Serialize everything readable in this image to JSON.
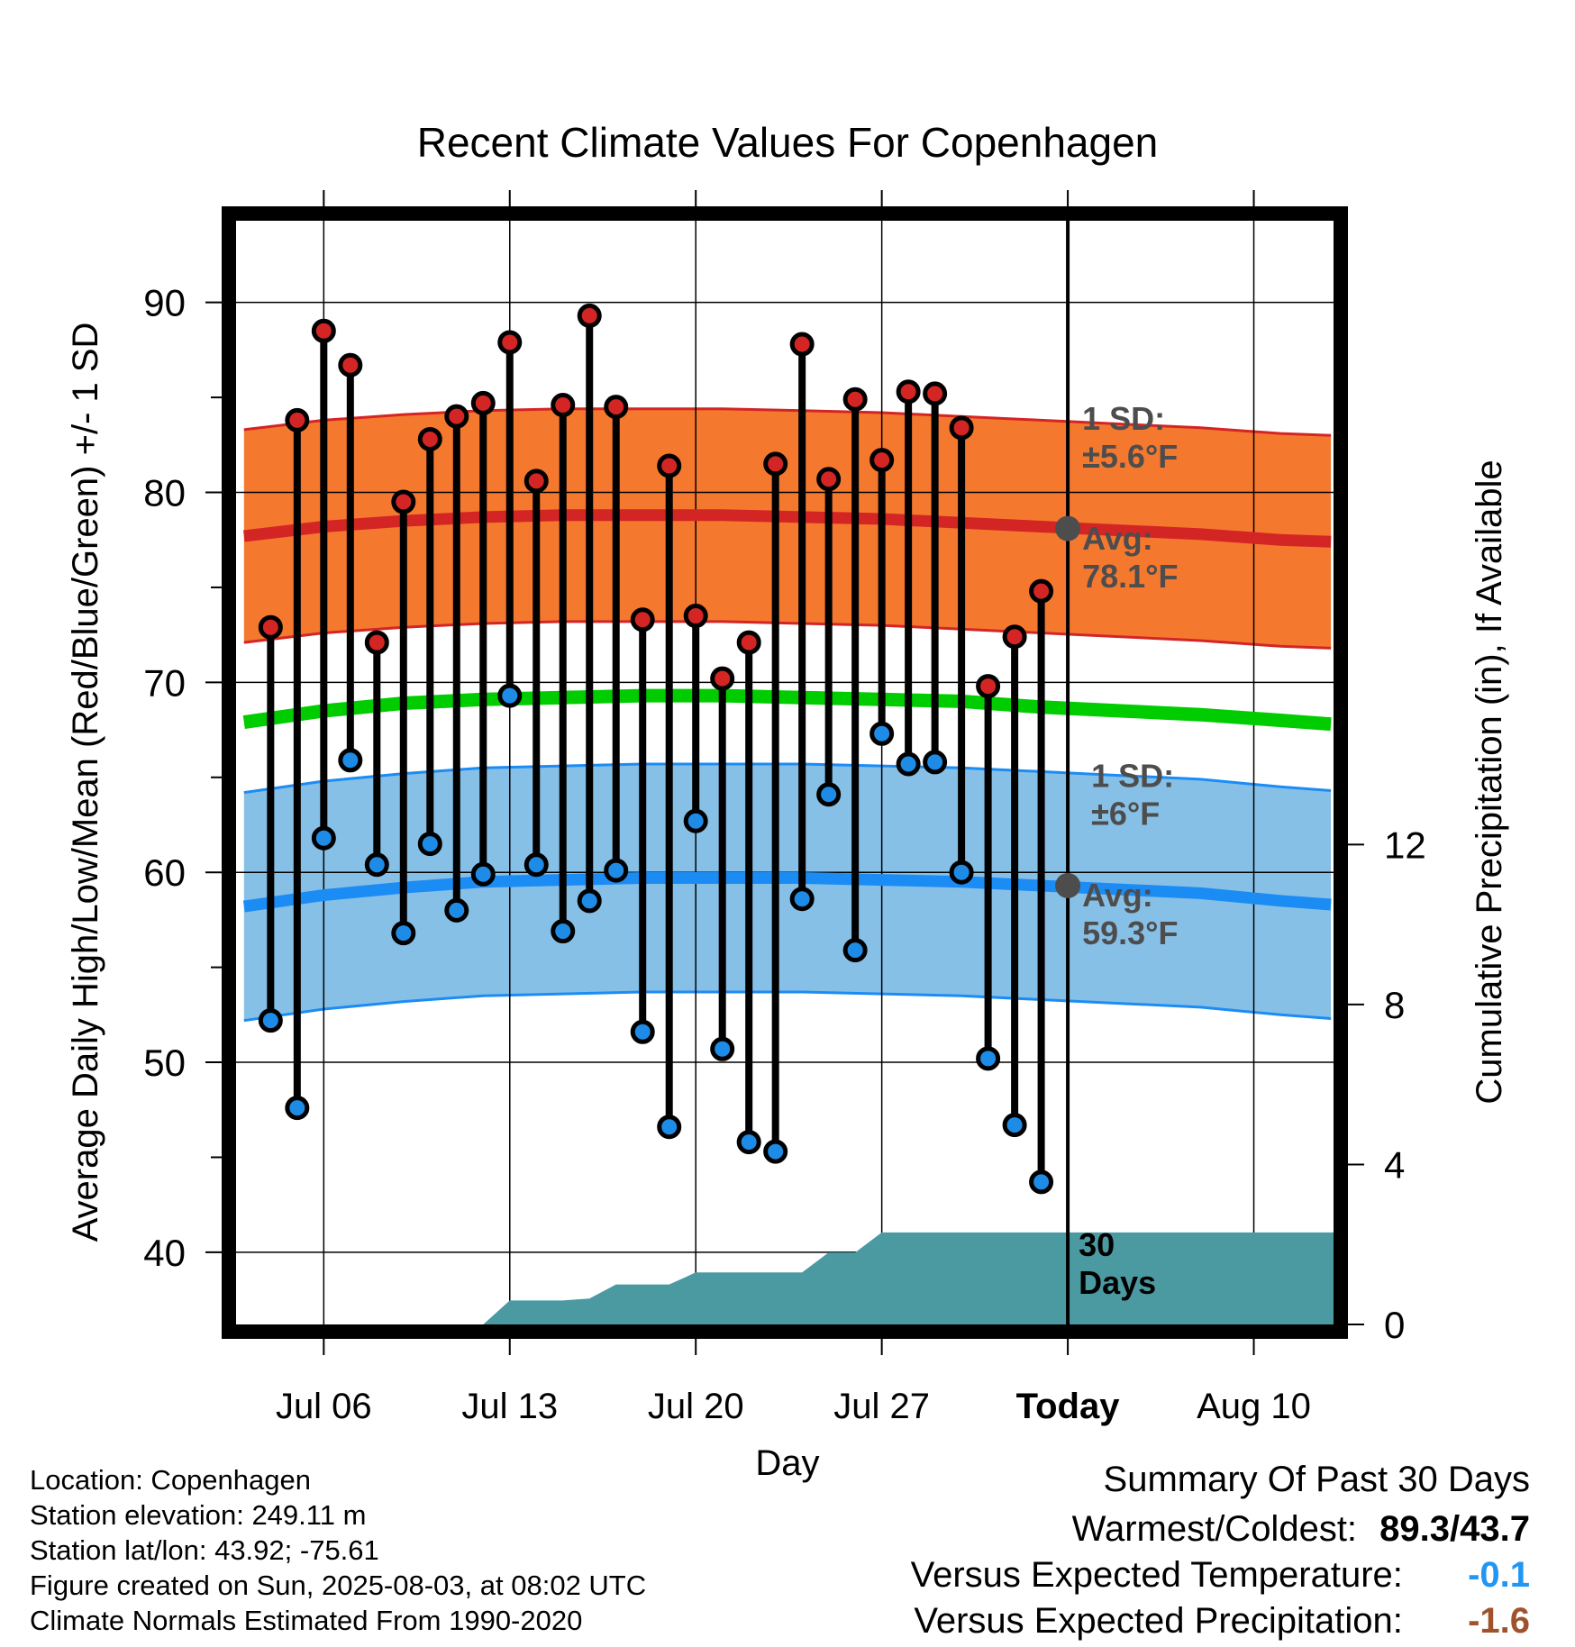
{
  "chart_data": {
    "type": "line",
    "title": "Recent Climate Values For Copenhagen",
    "xlabel": "Day",
    "ylabel_left": "Average Daily High/Low/Mean (Red/Blue/Green) +/- 1 SD",
    "ylabel_right": "Cumulative Precipitation (in), If Available",
    "x_ticks": [
      {
        "day": 6,
        "label": "Jul 06"
      },
      {
        "day": 13,
        "label": "Jul 13"
      },
      {
        "day": 20,
        "label": "Jul 20"
      },
      {
        "day": 27,
        "label": "Jul 27"
      },
      {
        "day": 34,
        "label": "Today"
      },
      {
        "day": 41,
        "label": "Aug 10"
      }
    ],
    "xlim": [
      2.7,
      44.0
    ],
    "ylim": [
      36.2,
      94.3
    ],
    "y_ticks": [
      40,
      50,
      60,
      70,
      80,
      90
    ],
    "y2lim": [
      0,
      27.6
    ],
    "y2_ticks": [
      0,
      4,
      8,
      12
    ],
    "grid": true,
    "today_day": 34,
    "days": [
      4,
      5,
      6,
      7,
      8,
      9,
      10,
      11,
      12,
      13,
      14,
      15,
      16,
      17,
      18,
      19,
      20,
      21,
      22,
      23,
      24,
      25,
      26,
      27,
      28,
      29,
      30,
      31,
      32,
      33
    ],
    "highs": [
      72.9,
      83.8,
      88.5,
      86.7,
      72.1,
      79.5,
      82.8,
      84.0,
      84.7,
      87.9,
      80.6,
      84.6,
      89.3,
      84.5,
      73.3,
      81.4,
      73.5,
      70.2,
      72.1,
      81.5,
      87.8,
      80.7,
      84.9,
      81.7,
      85.3,
      85.2,
      83.4,
      69.8,
      72.4,
      74.8
    ],
    "lows": [
      52.2,
      47.6,
      61.8,
      65.9,
      60.4,
      56.8,
      61.5,
      58.0,
      59.9,
      69.3,
      60.4,
      56.9,
      58.5,
      60.1,
      51.6,
      46.6,
      62.7,
      50.7,
      45.8,
      45.3,
      58.6,
      64.1,
      55.9,
      67.3,
      65.7,
      65.8,
      60.0,
      50.2,
      46.7,
      43.7
    ],
    "normal_days": [
      3,
      6,
      9,
      12,
      15,
      18,
      21,
      24,
      27,
      30,
      33,
      36,
      39,
      42,
      43.9
    ],
    "normal_high": [
      77.7,
      78.2,
      78.5,
      78.7,
      78.8,
      78.8,
      78.8,
      78.7,
      78.6,
      78.4,
      78.2,
      78.0,
      77.8,
      77.5,
      77.4
    ],
    "normal_low": [
      58.2,
      58.8,
      59.2,
      59.5,
      59.6,
      59.7,
      59.7,
      59.7,
      59.6,
      59.5,
      59.3,
      59.1,
      58.9,
      58.5,
      58.3
    ],
    "normal_mean": [
      67.9,
      68.5,
      68.9,
      69.1,
      69.2,
      69.3,
      69.3,
      69.2,
      69.1,
      69.0,
      68.7,
      68.5,
      68.3,
      68.0,
      67.8
    ],
    "high_sd": 5.6,
    "low_sd": 6,
    "precip_days": [
      12,
      13,
      14,
      15,
      16,
      17,
      18,
      19,
      20,
      21,
      22,
      23,
      24,
      25,
      26,
      27,
      28,
      29,
      30,
      31,
      32,
      33,
      44.0
    ],
    "precip_cum": [
      0,
      0.6,
      0.6,
      0.6,
      0.65,
      1.0,
      1.0,
      1.0,
      1.3,
      1.3,
      1.3,
      1.3,
      1.3,
      1.8,
      1.8,
      2.3,
      2.3,
      2.3,
      2.3,
      2.3,
      2.3,
      2.3,
      2.3
    ],
    "annotations": {
      "high_sd": [
        "1 SD:",
        "±5.6°F"
      ],
      "high_avg": [
        "Avg:",
        "78.1°F"
      ],
      "low_sd": [
        "1 SD:",
        "±6°F"
      ],
      "low_avg": [
        "Avg:",
        "59.3°F"
      ],
      "days": [
        "30",
        "Days"
      ]
    },
    "colors": {
      "high_band": "#f5782f",
      "high_line": "#d42525",
      "low_band": "#87c0e6",
      "low_line": "#1c8cf5",
      "mean_line": "#00cc00",
      "precip": "#4b9aa2",
      "high_dot": "#d42525",
      "low_dot": "#1e8ce6",
      "annotation": "#4d4d4d"
    }
  },
  "info": {
    "location": "Location: Copenhagen",
    "elevation": "Station elevation: 249.11 m",
    "latlon": "Station lat/lon: 43.92; -75.61",
    "created": "Figure created on Sun, 2025-08-03, at 08:02 UTC",
    "normals": "Climate Normals Estimated From 1990-2020"
  },
  "summary": {
    "heading": "Summary Of Past 30 Days",
    "warm_cold_label": "Warmest/Coldest:",
    "warm_cold_value": "89.3/43.7",
    "temp_label": "Versus Expected Temperature:",
    "temp_value": "-0.1",
    "temp_color": "#2196f3",
    "precip_label": "Versus Expected Precipitation:",
    "precip_value": "-1.6",
    "precip_color": "#a0522d"
  }
}
